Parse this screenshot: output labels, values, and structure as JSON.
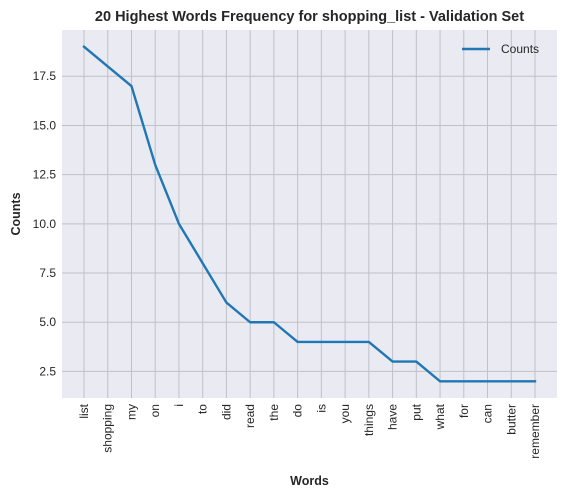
{
  "chart_data": {
    "type": "line",
    "title": "20 Highest Words Frequency for shopping_list - Validation Set",
    "xlabel": "Words",
    "ylabel": "Counts",
    "categories": [
      "list",
      "shopping",
      "my",
      "on",
      "i",
      "to",
      "did",
      "read",
      "the",
      "do",
      "is",
      "you",
      "things",
      "have",
      "put",
      "what",
      "for",
      "can",
      "butter",
      "remember"
    ],
    "series": [
      {
        "name": "Counts",
        "values": [
          19,
          18,
          17,
          13,
          10,
          8,
          6,
          5,
          5,
          4,
          4,
          4,
          4,
          3,
          3,
          2,
          2,
          2,
          2,
          2
        ],
        "color": "#1f77b4"
      }
    ],
    "yticks": [
      2.5,
      5.0,
      7.5,
      10.0,
      12.5,
      15.0,
      17.5
    ],
    "ylim": [
      1.15,
      19.85
    ],
    "grid": true,
    "legend_position": "top-right",
    "colors": {
      "background": "#eaeaf2",
      "grid": "#c0c0c8",
      "line": "#1f77b4"
    }
  }
}
